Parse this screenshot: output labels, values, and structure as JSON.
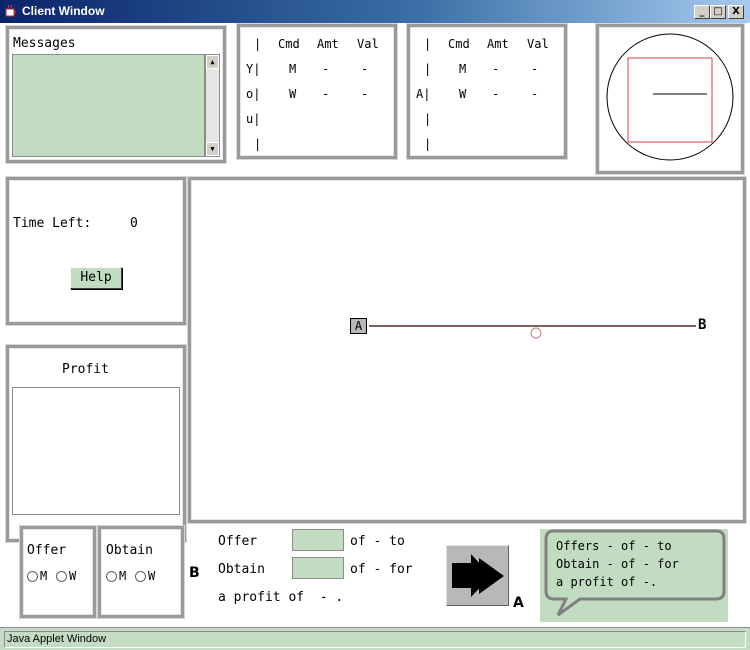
{
  "window": {
    "title": "Client Window",
    "min_glyph": "_",
    "max_glyph": "□",
    "close_glyph": "X"
  },
  "messages": {
    "label": "Messages",
    "text": ""
  },
  "table_left": {
    "headers": [
      "|",
      "Cmd",
      "Amt",
      "Val"
    ],
    "rows": [
      [
        "Y|",
        "M",
        "-",
        "-"
      ],
      [
        "o|",
        "W",
        "-",
        "-"
      ],
      [
        "u|",
        "",
        "",
        ""
      ],
      [
        "|",
        "",
        "",
        ""
      ]
    ]
  },
  "table_right": {
    "headers": [
      "|",
      "Cmd",
      "Amt",
      "Val"
    ],
    "rows": [
      [
        "|",
        "M",
        "-",
        "-"
      ],
      [
        "A|",
        "W",
        "-",
        "-"
      ],
      [
        "|",
        "",
        "",
        ""
      ],
      [
        "|",
        "",
        "",
        ""
      ]
    ]
  },
  "timer": {
    "label": "Time Left:",
    "value": "0"
  },
  "help_button": "Help",
  "profit": {
    "label": "Profit"
  },
  "main_canvas": {
    "left_label": "A",
    "right_label": "B"
  },
  "offer_group": {
    "label": "Offer",
    "option_m": "M",
    "option_w": "W"
  },
  "obtain_group": {
    "label": "Obtain",
    "option_m": "M",
    "option_w": "W"
  },
  "b_label": "B",
  "trade_form": {
    "offer_label": "Offer",
    "offer_value": "",
    "offer_suffix": "of - to",
    "obtain_label": "Obtain",
    "obtain_value": "",
    "obtain_suffix": "of - for",
    "profit_line": "a profit of  - ."
  },
  "a_label": "A",
  "speech": {
    "line1": "Offers - of - to",
    "line2": "Obtain - of - for",
    "line3": "a profit of -."
  },
  "status": "Java Applet Window",
  "colors": {
    "titlebar": "#0a246a",
    "panel_green": "#c2dcc2",
    "line": "#5a2a2a",
    "box": "#cc4444"
  }
}
